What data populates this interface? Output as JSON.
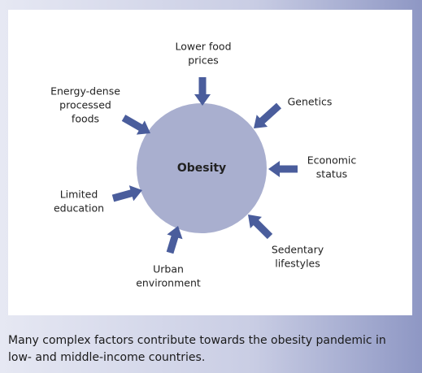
{
  "center": {
    "label": "Obesity"
  },
  "factors": [
    {
      "label": [
        "Lower food",
        "prices"
      ]
    },
    {
      "label": [
        "Genetics"
      ]
    },
    {
      "label": [
        "Economic",
        "status"
      ]
    },
    {
      "label": [
        "Sedentary",
        "lifestyles"
      ]
    },
    {
      "label": [
        "Urban",
        "environment"
      ]
    },
    {
      "label": [
        "Limited",
        "education"
      ]
    },
    {
      "label": [
        "Energy-dense",
        "processed",
        "foods"
      ]
    }
  ],
  "caption": [
    "Many complex factors contribute towards the obesity pandemic in",
    "low- and middle-income countries."
  ]
}
